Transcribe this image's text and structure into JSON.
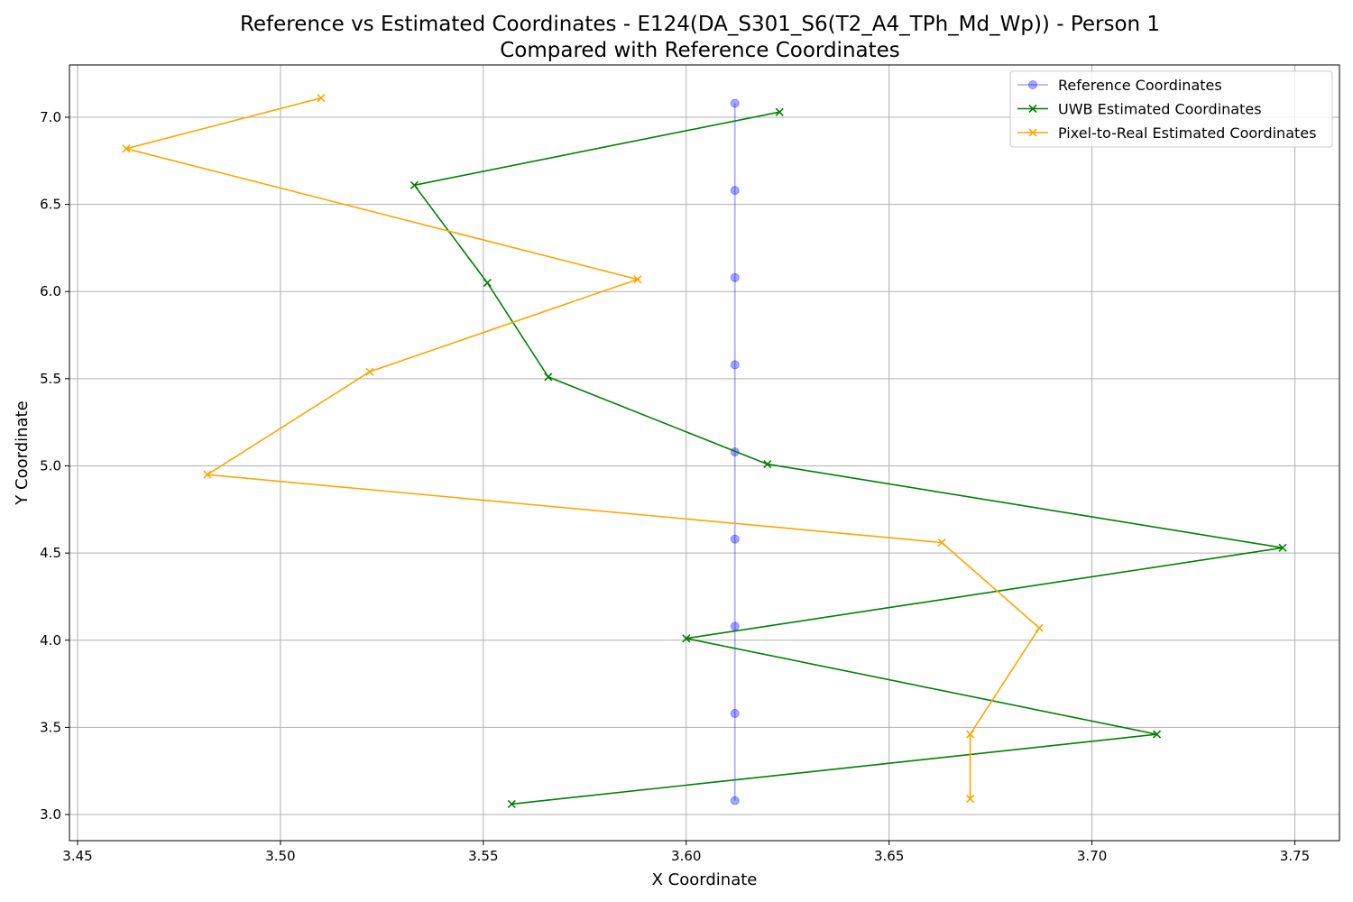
{
  "chart_data": {
    "type": "line",
    "title": "Reference vs Estimated Coordinates - E124(DA_S301_S6(T2_A4_TPh_Md_Wp)) - Person 1",
    "subtitle": "Compared with Reference Coordinates",
    "xlabel": "X Coordinate",
    "ylabel": "Y Coordinate",
    "xlim": [
      3.448,
      3.761
    ],
    "ylim": [
      2.85,
      7.3
    ],
    "xticks": [
      3.45,
      3.5,
      3.55,
      3.6,
      3.65,
      3.7,
      3.75
    ],
    "xtick_labels": [
      "3.45",
      "3.50",
      "3.55",
      "3.60",
      "3.65",
      "3.70",
      "3.75"
    ],
    "yticks": [
      3.0,
      3.5,
      4.0,
      4.5,
      5.0,
      5.5,
      6.0,
      6.5,
      7.0
    ],
    "ytick_labels": [
      "3.0",
      "3.5",
      "4.0",
      "4.5",
      "5.0",
      "5.5",
      "6.0",
      "6.5",
      "7.0"
    ],
    "grid": true,
    "legend_position": "top-right",
    "series": [
      {
        "name": "Reference Coordinates",
        "color": "#0000ff",
        "marker": "circle",
        "x": [
          3.612,
          3.612,
          3.612,
          3.612,
          3.612,
          3.612,
          3.612,
          3.612,
          3.612
        ],
        "y": [
          7.08,
          6.58,
          6.08,
          5.58,
          5.08,
          4.58,
          4.08,
          3.58,
          3.08
        ]
      },
      {
        "name": "UWB Estimated Coordinates",
        "color": "#008000",
        "marker": "x",
        "x": [
          3.623,
          3.533,
          3.551,
          3.566,
          3.62,
          3.747,
          3.6,
          3.716,
          3.557
        ],
        "y": [
          7.03,
          6.61,
          6.05,
          5.51,
          5.01,
          4.53,
          4.01,
          3.46,
          3.06
        ]
      },
      {
        "name": "Pixel-to-Real Estimated Coordinates",
        "color": "#ffa500",
        "marker": "x",
        "x": [
          3.51,
          3.462,
          3.588,
          3.522,
          3.482,
          3.663,
          3.687,
          3.67,
          3.67
        ],
        "y": [
          7.11,
          6.82,
          6.07,
          5.54,
          4.95,
          4.56,
          4.07,
          3.46,
          3.09
        ]
      }
    ]
  }
}
